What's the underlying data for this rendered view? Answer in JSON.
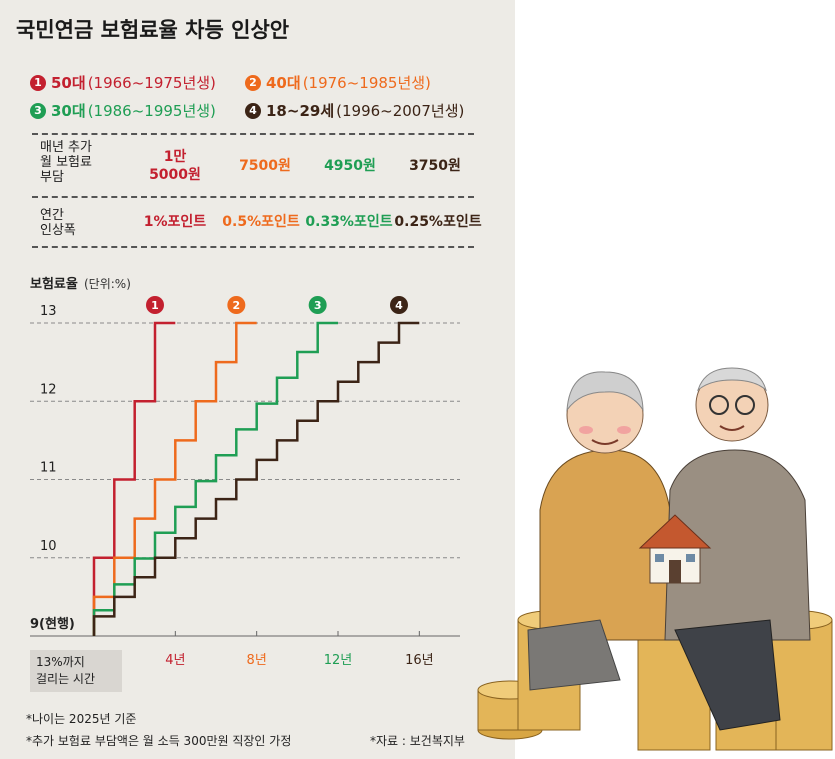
{
  "title": "국민연금 보험료율 차등 인상안",
  "legend": [
    {
      "num": "1",
      "age": "50대",
      "years": "(1966~1975년생)",
      "color": "#c3202f"
    },
    {
      "num": "2",
      "age": "40대",
      "years": "(1976~1985년생)",
      "color": "#ee6a1d"
    },
    {
      "num": "3",
      "age": "30대",
      "years": "(1986~1995년생)",
      "color": "#1f9e54"
    },
    {
      "num": "4",
      "age": "18~29세",
      "years": "(1996~2007년생)",
      "color": "#3c2416"
    }
  ],
  "table": {
    "row1_label_lines": [
      "매년 추가",
      "월 보험료",
      "부담"
    ],
    "row2_label_lines": [
      "연간",
      "인상폭"
    ],
    "monthly_burden": [
      "1만\n5000원",
      "7500원",
      "4950원",
      "3750원"
    ],
    "annual_increase": [
      "1%포인트",
      "0.5%포인트",
      "0.33%포인트",
      "0.25%포인트"
    ]
  },
  "chart_data": {
    "type": "line",
    "ylabel": "보험료율",
    "yunit": "(단위:%)",
    "ylim": [
      9,
      13
    ],
    "yticks": [
      13,
      12,
      11,
      10
    ],
    "ybase_label": "9(현행)",
    "xlim": [
      0,
      18
    ],
    "xticks": [
      4,
      8,
      12,
      16
    ],
    "xtick_labels": [
      "4년",
      "8년",
      "12년",
      "16년"
    ],
    "grid": true,
    "series": [
      {
        "name": "1",
        "color": "#c3202f",
        "step_years": 1,
        "step_size": 1,
        "final_year": 4
      },
      {
        "name": "2",
        "color": "#ee6a1d",
        "step_years": 1,
        "step_size": 0.5,
        "final_year": 8
      },
      {
        "name": "3",
        "color": "#1f9e54",
        "step_years": 1,
        "step_size": 0.33,
        "final_year": 12
      },
      {
        "name": "4",
        "color": "#3c2416",
        "step_years": 1,
        "step_size": 0.25,
        "final_year": 16
      }
    ]
  },
  "callout_lines": [
    "13%까지",
    "걸리는 시간"
  ],
  "notes": {
    "age_basis": "*나이는 2025년 기준",
    "assumption": "*추가 보험료 부담액은 월 소득 300만원 직장인 가정",
    "source": "*자료 : 보건복지부"
  }
}
